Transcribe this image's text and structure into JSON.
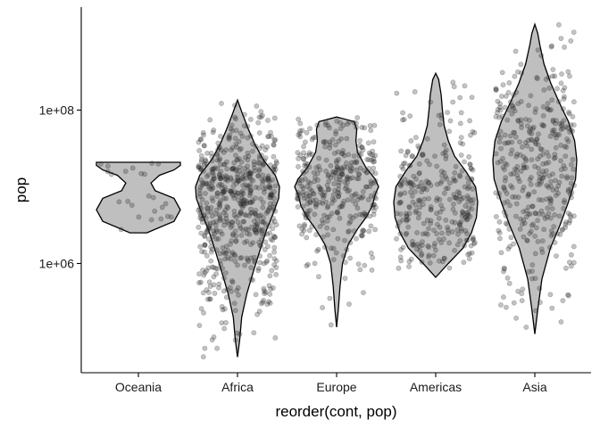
{
  "chart_data": {
    "type": "violin",
    "xlabel": "reorder(cont, pop)",
    "ylabel": "pop",
    "y_scale": "log10",
    "ylim": [
      20000,
      2000000000
    ],
    "y_ticks": [
      {
        "value": 1000000,
        "label": "1e+06"
      },
      {
        "value": 100000000,
        "label": "1e+08"
      }
    ],
    "grid": false,
    "legend": "none",
    "point_style": "jittered semi-transparent grey points",
    "violin_fill": "#bfbfbf",
    "categories": [
      "Oceania",
      "Africa",
      "Europe",
      "Americas",
      "Asia"
    ],
    "groups": [
      {
        "category": "Oceania",
        "n_points": 24,
        "min": 2500000,
        "max": 21000000,
        "shape": [
          [
            6.4,
            0.2
          ],
          [
            6.55,
            0.85
          ],
          [
            6.7,
            1.0
          ],
          [
            6.85,
            0.85
          ],
          [
            6.95,
            0.4
          ],
          [
            7.05,
            0.3
          ],
          [
            7.15,
            0.5
          ],
          [
            7.22,
            0.85
          ],
          [
            7.28,
            1.0
          ],
          [
            7.32,
            1.0
          ]
        ]
      },
      {
        "category": "Africa",
        "n_points": 624,
        "min": 60000,
        "max": 135000000,
        "shape": [
          [
            4.78,
            0.0
          ],
          [
            5.0,
            0.05
          ],
          [
            5.3,
            0.1
          ],
          [
            5.6,
            0.22
          ],
          [
            5.9,
            0.38
          ],
          [
            6.2,
            0.55
          ],
          [
            6.45,
            0.7
          ],
          [
            6.65,
            0.85
          ],
          [
            6.85,
            0.98
          ],
          [
            7.0,
            1.0
          ],
          [
            7.15,
            0.9
          ],
          [
            7.35,
            0.62
          ],
          [
            7.55,
            0.42
          ],
          [
            7.75,
            0.26
          ],
          [
            7.95,
            0.12
          ],
          [
            8.13,
            0.0
          ]
        ]
      },
      {
        "category": "Europe",
        "n_points": 360,
        "min": 147000,
        "max": 82400000,
        "shape": [
          [
            5.17,
            0.0
          ],
          [
            5.4,
            0.04
          ],
          [
            5.7,
            0.08
          ],
          [
            6.0,
            0.14
          ],
          [
            6.25,
            0.28
          ],
          [
            6.45,
            0.5
          ],
          [
            6.6,
            0.7
          ],
          [
            6.75,
            0.85
          ],
          [
            6.9,
            0.92
          ],
          [
            7.0,
            1.0
          ],
          [
            7.1,
            0.92
          ],
          [
            7.25,
            0.7
          ],
          [
            7.45,
            0.5
          ],
          [
            7.6,
            0.46
          ],
          [
            7.75,
            0.48
          ],
          [
            7.85,
            0.42
          ],
          [
            7.91,
            0.0
          ]
        ]
      },
      {
        "category": "Americas",
        "n_points": 300,
        "min": 663000,
        "max": 301000000,
        "shape": [
          [
            5.82,
            0.0
          ],
          [
            6.0,
            0.3
          ],
          [
            6.2,
            0.65
          ],
          [
            6.4,
            0.85
          ],
          [
            6.6,
            0.97
          ],
          [
            6.8,
            1.0
          ],
          [
            7.0,
            0.95
          ],
          [
            7.2,
            0.72
          ],
          [
            7.4,
            0.45
          ],
          [
            7.6,
            0.3
          ],
          [
            7.8,
            0.2
          ],
          [
            8.0,
            0.16
          ],
          [
            8.2,
            0.13
          ],
          [
            8.4,
            0.07
          ],
          [
            8.48,
            0.0
          ]
        ]
      },
      {
        "category": "Asia",
        "n_points": 396,
        "min": 120000,
        "max": 1320000000,
        "shape": [
          [
            5.08,
            0.0
          ],
          [
            5.4,
            0.07
          ],
          [
            5.8,
            0.17
          ],
          [
            6.2,
            0.37
          ],
          [
            6.5,
            0.6
          ],
          [
            6.8,
            0.8
          ],
          [
            7.1,
            0.97
          ],
          [
            7.35,
            1.0
          ],
          [
            7.6,
            0.95
          ],
          [
            7.85,
            0.8
          ],
          [
            8.1,
            0.58
          ],
          [
            8.35,
            0.38
          ],
          [
            8.6,
            0.22
          ],
          [
            8.85,
            0.12
          ],
          [
            9.0,
            0.07
          ],
          [
            9.12,
            0.0
          ]
        ]
      }
    ]
  }
}
